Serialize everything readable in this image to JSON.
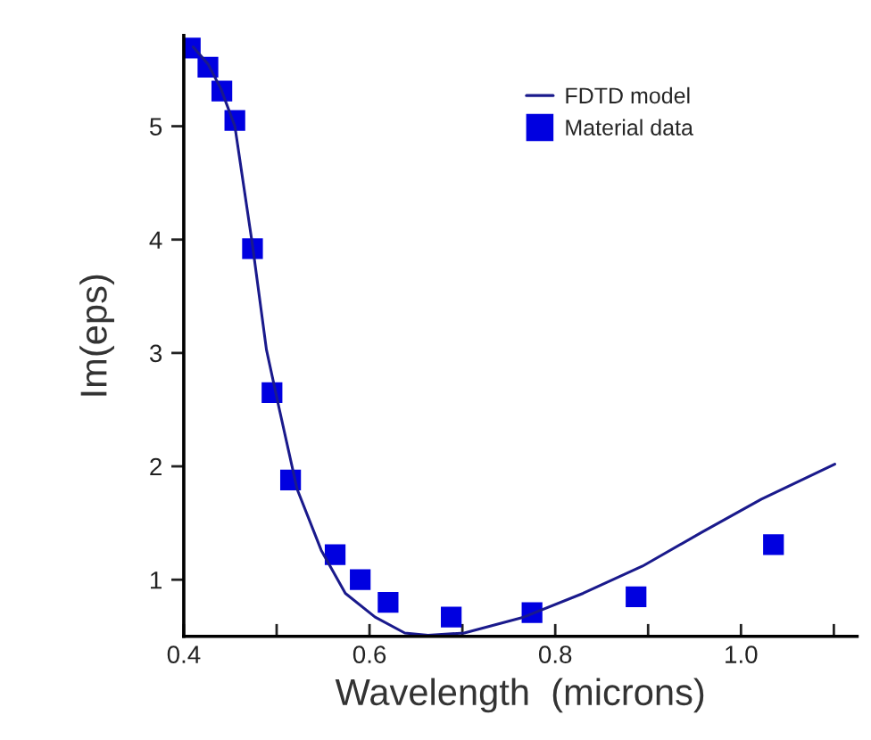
{
  "chart_data": {
    "type": "scatter",
    "xlabel": "Wavelength  (microns)",
    "ylabel": "Im(eps)",
    "series": [
      {
        "name": "FDTD model",
        "type": "line",
        "color": "#1a1a8c",
        "marker": "none",
        "x": [
          0.41,
          0.426,
          0.44,
          0.455,
          0.474,
          0.489,
          0.503,
          0.522,
          0.548,
          0.574,
          0.606,
          0.638,
          0.663,
          0.702,
          0.766,
          0.83,
          0.894,
          0.958,
          1.022,
          1.101
        ],
        "values": [
          5.7,
          5.55,
          5.33,
          5.0,
          3.95,
          3.03,
          2.5,
          1.8,
          1.26,
          0.88,
          0.67,
          0.53,
          0.51,
          0.53,
          0.67,
          0.88,
          1.12,
          1.42,
          1.71,
          2.02
        ]
      },
      {
        "name": "Material data",
        "color": "#0000e0",
        "marker": "square",
        "x": [
          0.407,
          0.426,
          0.441,
          0.455,
          0.474,
          0.495,
          0.515,
          0.563,
          0.59,
          0.62,
          0.688,
          0.775,
          0.887,
          1.035
        ],
        "values": [
          5.69,
          5.52,
          5.31,
          5.05,
          3.92,
          2.65,
          1.88,
          1.22,
          1.0,
          0.8,
          0.67,
          0.71,
          0.85,
          1.31
        ]
      }
    ],
    "xlim": [
      0.4,
      1.125
    ],
    "ylim": [
      0.5,
      5.8
    ],
    "xticks": [
      0.4,
      {
        "value": 0.5,
        "label": null
      },
      {
        "value": 0.6,
        "label": "0.6"
      },
      {
        "value": 0.7,
        "label": null
      },
      {
        "value": 0.8,
        "label": "0.8"
      },
      {
        "value": 0.9,
        "label": null
      },
      {
        "value": 1.0,
        "label": "1.0"
      },
      {
        "value": 1.1,
        "label": null
      }
    ],
    "yticks": [
      1,
      2,
      3,
      4,
      5
    ],
    "grid": false,
    "legend": "top right"
  }
}
